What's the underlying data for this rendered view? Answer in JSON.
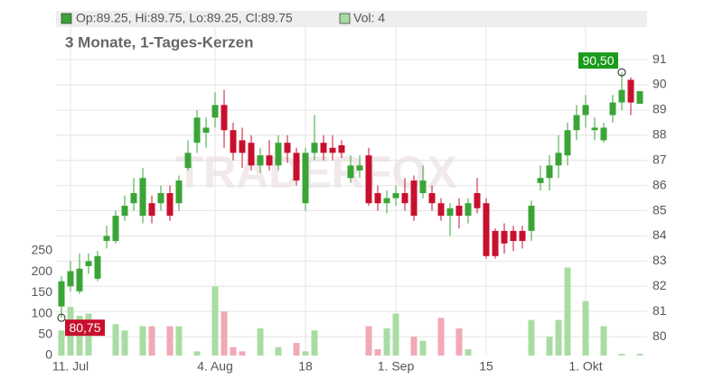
{
  "chart_data": {
    "type": "candlestick",
    "ohlc_label": "Op:89.25, Hi:89.75, Lo:89.25, Cl:89.75",
    "volume_label": "Vol: 4",
    "subtitle": "3 Monate, 1-Tages-Kerzen",
    "watermark": "TRADERFOX",
    "categories": [
      null,
      "11. Jul",
      null,
      null,
      null,
      null,
      null,
      null,
      null,
      null,
      null,
      null,
      null,
      null,
      null,
      null,
      null,
      "4. Aug",
      null,
      null,
      null,
      null,
      null,
      null,
      null,
      null,
      null,
      "18",
      null,
      null,
      null,
      null,
      null,
      null,
      null,
      null,
      null,
      "1. Sep",
      null,
      null,
      null,
      null,
      null,
      null,
      null,
      null,
      null,
      "15",
      null,
      null,
      null,
      null,
      null,
      null,
      null,
      null,
      null,
      null,
      "1. Okt",
      null,
      null,
      null,
      null,
      null,
      null
    ],
    "open": [
      81.2,
      82.0,
      81.8,
      82.8,
      82.3,
      83.8,
      83.8,
      84.8,
      85.3,
      84.8,
      85.3,
      85.3,
      85.7,
      85.3,
      86.7,
      87.7,
      88.1,
      88.7,
      89.2,
      88.2,
      87.8,
      87.7,
      86.8,
      87.2,
      86.8,
      87.7,
      87.3,
      85.3,
      87.3,
      87.7,
      87.5,
      87.6,
      86.3,
      86.6,
      87.2,
      85.7,
      85.3,
      85.5,
      85.7,
      86.2,
      85.7,
      85.7,
      85.3,
      84.8,
      85.2,
      84.8,
      85.7,
      85.3,
      84.2,
      84.2,
      84.2,
      84.2,
      84.2,
      86.1,
      86.3,
      86.8,
      87.2,
      88.2,
      88.8,
      88.2,
      87.8,
      88.8,
      89.3,
      90.2,
      89.25
    ],
    "high": [
      82.4,
      83.0,
      83.3,
      83.3,
      83.4,
      84.4,
      85.0,
      85.6,
      86.3,
      86.7,
      85.6,
      86.0,
      86.0,
      86.4,
      87.8,
      89.0,
      88.7,
      89.7,
      89.8,
      88.5,
      88.3,
      88.0,
      87.5,
      87.8,
      88.0,
      88.0,
      87.5,
      87.5,
      88.8,
      88.0,
      88.0,
      87.8,
      87.2,
      87.2,
      87.5,
      86.0,
      85.8,
      86.0,
      86.3,
      86.4,
      86.8,
      86.0,
      85.5,
      85.3,
      85.5,
      85.5,
      86.3,
      85.5,
      84.3,
      84.5,
      84.4,
      84.4,
      85.4,
      86.8,
      87.2,
      88.0,
      88.5,
      89.2,
      89.6,
      88.7,
      88.5,
      89.6,
      90.5,
      90.3,
      89.75
    ],
    "low": [
      80.75,
      81.8,
      81.7,
      82.5,
      82.2,
      83.5,
      83.7,
      84.6,
      85.0,
      84.5,
      84.5,
      85.0,
      84.6,
      85.0,
      86.6,
      87.3,
      87.5,
      88.3,
      87.5,
      87.0,
      86.7,
      86.6,
      86.5,
      86.6,
      86.6,
      86.9,
      86.0,
      85.0,
      87.0,
      87.0,
      87.0,
      87.1,
      86.1,
      86.3,
      85.2,
      85.0,
      84.9,
      85.2,
      85.0,
      84.6,
      85.5,
      85.0,
      84.6,
      84.0,
      84.3,
      84.5,
      84.9,
      83.1,
      83.1,
      83.3,
      83.4,
      83.5,
      83.8,
      85.8,
      85.8,
      86.3,
      86.8,
      87.8,
      88.3,
      87.8,
      87.7,
      88.5,
      89.0,
      88.8,
      89.25
    ],
    "close": [
      82.2,
      82.6,
      82.7,
      83.0,
      83.2,
      84.0,
      84.8,
      85.2,
      85.7,
      86.3,
      84.8,
      85.7,
      84.8,
      86.2,
      87.3,
      88.7,
      88.3,
      89.2,
      88.2,
      87.3,
      87.3,
      86.8,
      87.2,
      86.8,
      87.7,
      87.3,
      86.2,
      87.3,
      87.7,
      87.3,
      87.3,
      87.3,
      86.8,
      86.8,
      85.3,
      85.3,
      85.5,
      85.7,
      85.3,
      84.8,
      86.2,
      85.3,
      84.8,
      85.1,
      84.8,
      85.3,
      85.1,
      83.2,
      83.2,
      83.7,
      83.8,
      83.8,
      85.2,
      86.3,
      86.8,
      87.3,
      88.2,
      88.8,
      89.2,
      88.3,
      88.3,
      89.3,
      89.8,
      89.3,
      89.75
    ],
    "volume": [
      60,
      116,
      95,
      100,
      0,
      0,
      75,
      60,
      0,
      70,
      70,
      0,
      70,
      70,
      0,
      10,
      0,
      165,
      105,
      20,
      10,
      0,
      65,
      0,
      20,
      0,
      30,
      10,
      60,
      0,
      0,
      0,
      0,
      0,
      70,
      15,
      65,
      100,
      0,
      45,
      35,
      0,
      90,
      0,
      65,
      15,
      0,
      0,
      0,
      0,
      0,
      0,
      85,
      0,
      45,
      85,
      210,
      0,
      130,
      0,
      70,
      0,
      4,
      0,
      4
    ],
    "annotations": [
      {
        "value": 90.5,
        "label": "90,50",
        "color": "#1a9a1a"
      },
      {
        "value": 80.75,
        "label": "80,75",
        "color": "#c8102e"
      }
    ],
    "up_color": "#3aa537",
    "down_color": "#c8102e",
    "volume_up_color": "#a9dca3",
    "volume_down_color": "#f1a9b5",
    "ylim": [
      79.25,
      92.94
    ],
    "yticks": [
      80,
      81,
      82,
      83,
      84,
      85,
      86,
      87,
      88,
      89,
      90,
      91
    ],
    "y2lim": [
      0,
      823
    ],
    "y2ticks": [
      0,
      50,
      100,
      150,
      200,
      250
    ],
    "grid": true
  }
}
